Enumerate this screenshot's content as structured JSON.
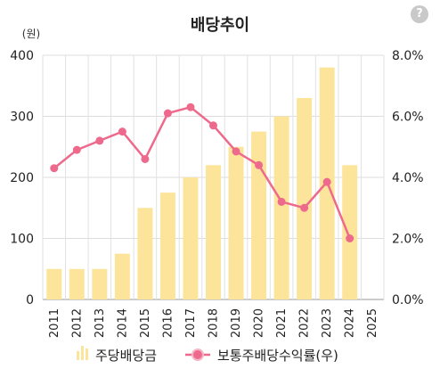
{
  "chart_data": {
    "type": "bar+line",
    "title": "배당추이",
    "left_axis_unit": "(원)",
    "categories": [
      "2011",
      "2012",
      "2013",
      "2014",
      "2015",
      "2016",
      "2017",
      "2018",
      "2019",
      "2020",
      "2021",
      "2022",
      "2023",
      "2024",
      "2025"
    ],
    "series": [
      {
        "name": "주당배당금",
        "type": "bar",
        "axis": "left",
        "color": "#fde49b",
        "values": [
          50,
          50,
          50,
          75,
          150,
          175,
          200,
          220,
          250,
          275,
          300,
          330,
          380,
          220,
          null
        ]
      },
      {
        "name": "보통주배당수익률(우)",
        "type": "line",
        "axis": "right",
        "color": "#ee6a8c",
        "values": [
          4.3,
          4.9,
          5.2,
          5.5,
          4.6,
          6.1,
          6.3,
          5.7,
          4.85,
          4.4,
          3.2,
          3.0,
          3.85,
          2.0,
          null
        ]
      }
    ],
    "left_ylim": [
      0,
      400
    ],
    "left_ticks": [
      "0",
      "100",
      "200",
      "300",
      "400"
    ],
    "right_ylim": [
      0,
      8
    ],
    "right_ticks": [
      "0.0%",
      "2.0%",
      "4.0%",
      "6.0%",
      "8.0%"
    ],
    "grid": true,
    "legend_position": "bottom"
  },
  "help_label": "?"
}
